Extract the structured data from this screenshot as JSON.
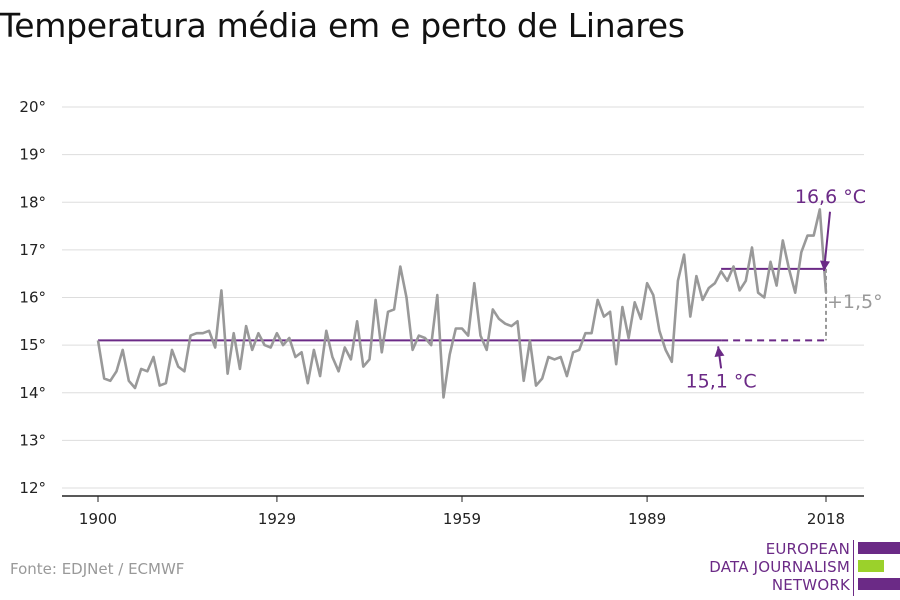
{
  "title": "Temperatura média em e perto de Linares",
  "source": "Fonte: EDJNet / ECMWF",
  "logo": {
    "line1": "EUROPEAN",
    "line2": "DATA JOURNALISM",
    "line3": "NETWORK",
    "colors": [
      "#6b2a86",
      "#9bd12b",
      "#6b2a86"
    ]
  },
  "colors": {
    "series": "#999999",
    "average": "#6b2a86",
    "grid": "#dddddd",
    "axis": "#222222"
  },
  "chart_data": {
    "type": "line",
    "title": "Temperatura média em e perto de Linares",
    "xlim": [
      1900,
      2018
    ],
    "ylim": [
      12,
      20
    ],
    "grid": true,
    "x_ticks": [
      {
        "value": 1900,
        "label": "1900"
      },
      {
        "value": 1929,
        "label": "1929"
      },
      {
        "value": 1959,
        "label": "1959"
      },
      {
        "value": 1989,
        "label": "1989"
      },
      {
        "value": 2018,
        "label": "2018"
      }
    ],
    "y_ticks": [
      {
        "value": 12,
        "label": "12°"
      },
      {
        "value": 13,
        "label": "13°"
      },
      {
        "value": 14,
        "label": "14°"
      },
      {
        "value": 15,
        "label": "15°"
      },
      {
        "value": 16,
        "label": "16°"
      },
      {
        "value": 17,
        "label": "17°"
      },
      {
        "value": 18,
        "label": "18°"
      },
      {
        "value": 19,
        "label": "19°"
      },
      {
        "value": 20,
        "label": "20°"
      }
    ],
    "series": [
      {
        "x_start": 1900,
        "values": [
          15.1,
          14.3,
          14.25,
          14.45,
          14.9,
          14.25,
          14.1,
          14.5,
          14.45,
          14.75,
          14.15,
          14.2,
          14.9,
          14.55,
          14.45,
          15.2,
          15.25,
          15.25,
          15.3,
          14.95,
          16.15,
          14.4,
          15.25,
          14.5,
          15.4,
          14.9,
          15.25,
          15.0,
          14.95,
          15.25,
          15.0,
          15.15,
          14.75,
          14.85,
          14.2,
          14.9,
          14.35,
          15.3,
          14.75,
          14.45,
          14.95,
          14.7,
          15.5,
          14.55,
          14.7,
          15.95,
          14.85,
          15.7,
          15.75,
          16.65,
          16.0,
          14.9,
          15.2,
          15.15,
          15.0,
          16.05,
          13.9,
          14.8,
          15.35,
          15.35,
          15.2,
          16.3,
          15.2,
          14.9,
          15.75,
          15.55,
          15.45,
          15.4,
          15.5,
          14.25,
          15.1,
          14.15,
          14.3,
          14.75,
          14.7,
          14.75,
          14.35,
          14.85,
          14.9,
          15.25,
          15.25,
          15.95,
          15.6,
          15.7,
          14.6,
          15.8,
          15.15,
          15.9,
          15.55,
          16.3,
          16.05,
          15.3,
          14.9,
          14.65,
          16.35,
          16.9,
          15.6,
          16.45,
          15.95,
          16.2,
          16.3,
          16.55,
          16.35,
          16.65,
          16.15,
          16.35,
          17.05,
          16.1,
          16.0,
          16.75,
          16.25,
          17.2,
          16.6,
          16.1,
          16.95,
          17.3,
          17.3,
          17.85,
          16.1
        ]
      }
    ],
    "reference_lines": [
      {
        "label": "15,1 °C",
        "value": 15.1,
        "x_from": 1900,
        "x_to": 2001,
        "dashed_to": 2018
      },
      {
        "label": "16,6 °C",
        "value": 16.6,
        "x_from": 2001,
        "x_to": 2018
      }
    ],
    "difference_label": "+1,5°"
  }
}
